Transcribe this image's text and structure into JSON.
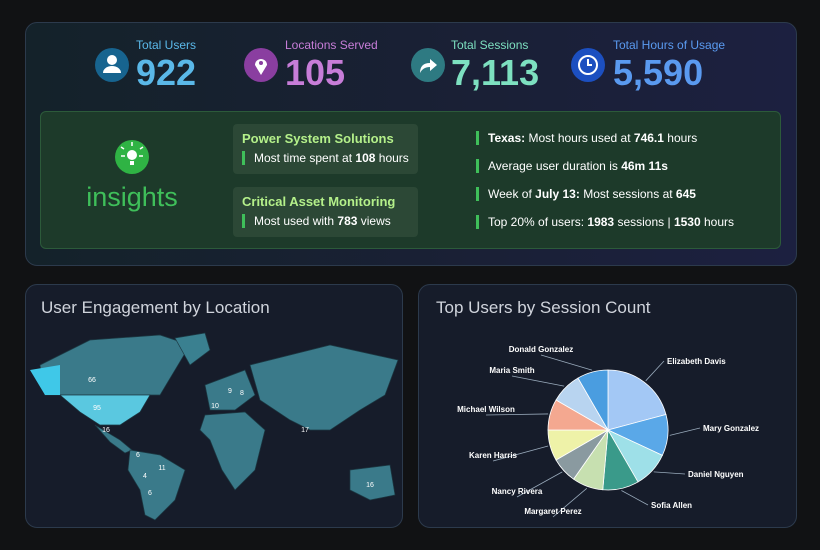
{
  "stats": [
    {
      "label": "Total Users",
      "value": 922
    },
    {
      "label": "Locations Served",
      "value": 105
    },
    {
      "label": "Total Sessions",
      "value": {
        "value": 7113,
        "label": "7,113"
      }
    },
    {
      "label": "Total Hours of Usage",
      "value": {
        "value": 5590,
        "label": "5,590"
      }
    }
  ],
  "insights": {
    "heading": "insights",
    "cards": [
      {
        "title": "Power System Solutions",
        "segments": [
          {
            "text": "Most time spent at",
            "bold": false
          },
          {
            "text": 108,
            "bold": true
          },
          {
            "text": "hours",
            "bold": false
          }
        ]
      },
      {
        "title": "Critical Asset Monitoring",
        "segments": [
          {
            "text": "Most used with",
            "bold": false
          },
          {
            "text": 783,
            "bold": true
          },
          {
            "text": "views",
            "bold": false
          }
        ]
      }
    ],
    "lines": [
      [
        {
          "text": "Texas:",
          "bold": true
        },
        {
          "text": "Most hours used at",
          "bold": false
        },
        {
          "text": 746.1,
          "bold": true
        },
        {
          "text": "hours",
          "bold": false
        }
      ],
      [
        {
          "text": "Average user duration is",
          "bold": false
        },
        {
          "text": "46m 11s",
          "bold": true
        }
      ],
      [
        {
          "text": "Week of",
          "bold": false
        },
        {
          "text": "July 13:",
          "bold": true
        },
        {
          "text": "Most sessions at",
          "bold": false
        },
        {
          "text": 645,
          "bold": true
        }
      ],
      [
        {
          "text": "Top 20% of users:",
          "bold": false
        },
        {
          "text": 1983,
          "bold": true
        },
        {
          "text": "sessions |",
          "bold": false
        },
        {
          "text": 1530,
          "bold": true
        },
        {
          "text": "hours",
          "bold": false
        }
      ]
    ]
  },
  "map": {
    "title": "User Engagement by Location",
    "values": [
      66,
      95,
      16,
      6,
      11,
      4,
      6,
      16,
      17,
      9,
      10,
      8
    ]
  },
  "chart_data": {
    "type": "pie",
    "title": "Top Users by Session Count",
    "categories": [
      "Elizabeth Davis",
      "Mary Gonzalez",
      "Daniel Nguyen",
      "Sofia Allen",
      "Margaret Perez",
      "Nancy Rivera",
      "Karen Harris",
      "Michael Wilson",
      "Maria Smith",
      "Donald Gonzalez"
    ],
    "values": [
      75,
      40,
      35,
      35,
      30,
      25,
      30,
      30,
      30,
      30
    ],
    "colors": [
      "#a3c8f5",
      "#5aa8e8",
      "#9ee0e8",
      "#3a9a8a",
      "#c7e0b0",
      "#8a9aa0",
      "#eef2a8",
      "#f4a890",
      "#b8d4f0",
      "#4a9de0"
    ]
  }
}
